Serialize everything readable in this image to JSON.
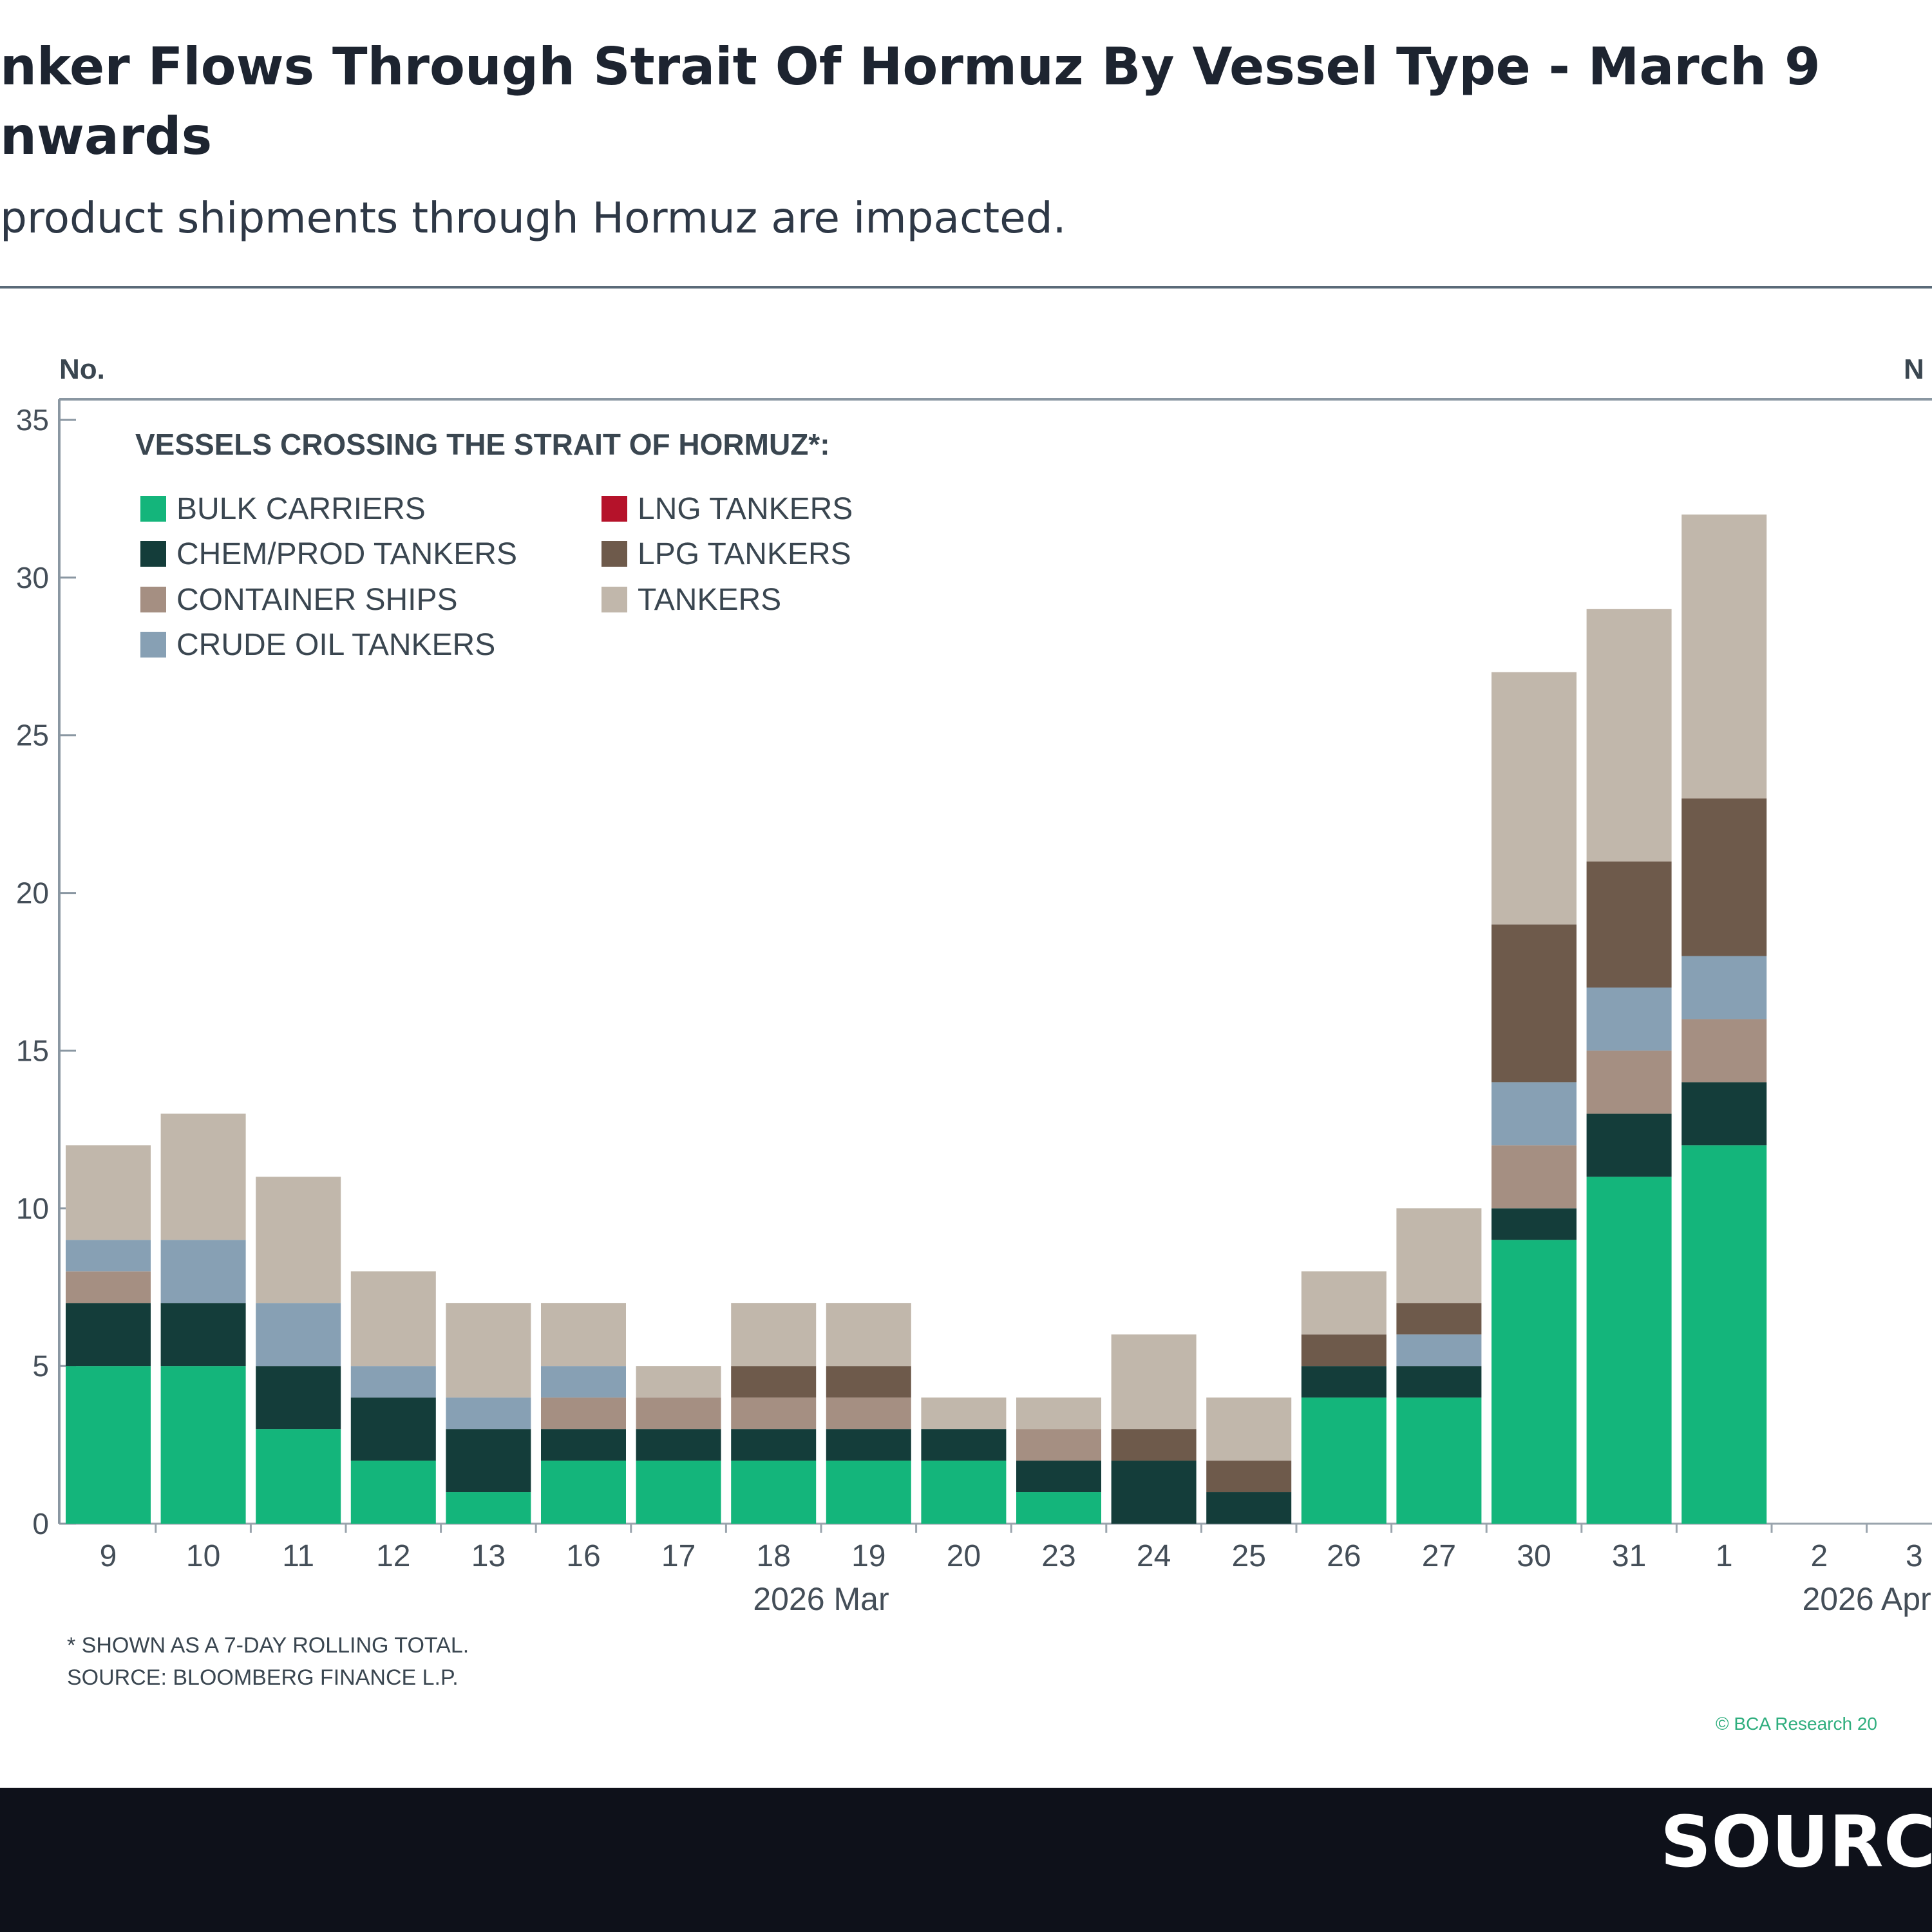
{
  "header": {
    "title_lines": [
      "nker Flows Through Strait Of Hormuz By Vessel Type - March 9",
      "nwards"
    ],
    "subtitle": "product shipments through Hormuz are impacted."
  },
  "chart_data": {
    "type": "bar",
    "stacked": true,
    "ylabel_left": "No.",
    "ylabel_right": "N",
    "ylim": [
      0,
      35
    ],
    "yticks": [
      0,
      5,
      10,
      15,
      20,
      25,
      30,
      35
    ],
    "grid": false,
    "legend_title": "VESSELS CROSSING THE STRAIT OF HORMUZ*:",
    "legend_placement": "top-left",
    "categories": [
      "9",
      "10",
      "11",
      "12",
      "13",
      "16",
      "17",
      "18",
      "19",
      "20",
      "23",
      "24",
      "25",
      "26",
      "27",
      "30",
      "31",
      "1",
      "2",
      "3"
    ],
    "month_labels": [
      {
        "label": "2026 Mar",
        "after_category": "18"
      },
      {
        "label": "2026 Apr",
        "after_category": "2"
      }
    ],
    "series": [
      {
        "name": "BULK CARRIERS",
        "color": "#14b57b",
        "values": [
          5,
          5,
          3,
          2,
          1,
          2,
          2,
          2,
          2,
          2,
          1,
          0,
          0,
          4,
          4,
          9,
          11,
          12,
          0,
          0
        ]
      },
      {
        "name": "CHEM/PROD TANKERS",
        "color": "#143d3a",
        "values": [
          2,
          2,
          2,
          2,
          2,
          1,
          1,
          1,
          1,
          1,
          1,
          2,
          1,
          1,
          1,
          1,
          2,
          2,
          0,
          0
        ]
      },
      {
        "name": "CONTAINER SHIPS",
        "color": "#a58f82",
        "values": [
          1,
          0,
          0,
          0,
          0,
          1,
          1,
          1,
          1,
          0,
          1,
          0,
          0,
          0,
          0,
          2,
          2,
          2,
          0,
          0
        ]
      },
      {
        "name": "CRUDE OIL TANKERS",
        "color": "#87a0b4",
        "values": [
          1,
          2,
          2,
          1,
          1,
          1,
          0,
          0,
          0,
          0,
          0,
          0,
          0,
          0,
          1,
          2,
          2,
          2,
          0,
          0
        ]
      },
      {
        "name": "LNG TANKERS",
        "color": "#b5122a",
        "values": [
          0,
          0,
          0,
          0,
          0,
          0,
          0,
          0,
          0,
          0,
          0,
          0,
          0,
          0,
          0,
          0,
          0,
          0,
          0,
          0
        ]
      },
      {
        "name": "LPG TANKERS",
        "color": "#6e5a4b",
        "values": [
          0,
          0,
          0,
          0,
          0,
          0,
          0,
          1,
          1,
          0,
          0,
          1,
          1,
          1,
          1,
          5,
          4,
          5,
          0,
          0
        ]
      },
      {
        "name": "TANKERS",
        "color": "#c1b7ab",
        "values": [
          3,
          4,
          4,
          3,
          3,
          2,
          1,
          2,
          2,
          1,
          1,
          3,
          2,
          2,
          3,
          8,
          8,
          9,
          0,
          0
        ]
      }
    ],
    "notes": [
      "* SHOWN AS A 7-DAY ROLLING TOTAL.",
      "SOURCE: BLOOMBERG FINANCE L.P."
    ],
    "copyright": "© BCA Research 20"
  },
  "footer": {
    "source_label": "SOURC"
  }
}
